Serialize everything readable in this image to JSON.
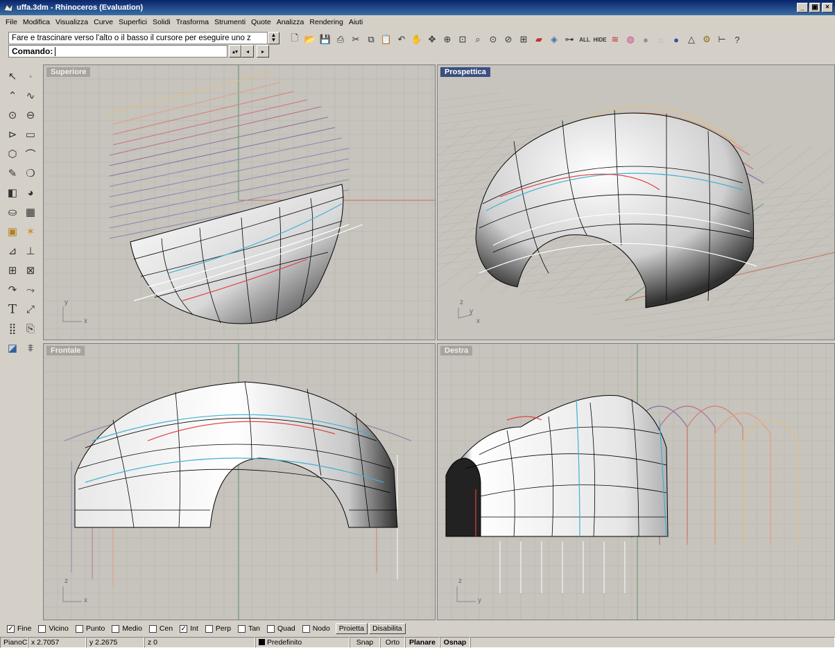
{
  "window": {
    "title": "uffa.3dm - Rhinoceros (Evaluation)",
    "controls": [
      "_",
      "▣",
      "×"
    ]
  },
  "menu": [
    "File",
    "Modifica",
    "Visualizza",
    "Curve",
    "Superfici",
    "Solidi",
    "Trasforma",
    "Strumenti",
    "Quote",
    "Analizza",
    "Rendering",
    "Aiuti"
  ],
  "command": {
    "history": "Fare e trascinare verso l'alto o il basso il cursore per eseguire uno z",
    "prompt_label": "Comando:",
    "value": ""
  },
  "toolbar_icons": [
    "new-icon",
    "open-icon",
    "save-icon",
    "print-icon",
    "cut-icon",
    "copy-icon",
    "paste-icon",
    "undo-icon",
    "pan-icon",
    "rotate-view-icon",
    "zoom-icon",
    "zoom-window-icon",
    "zoom-extents-icon",
    "zoom-selected-icon",
    "zoom-dynamic-icon",
    "viewport-layout-icon",
    "shaded-car-icon",
    "render-icon",
    "grid-snap-icon",
    "all-icon",
    "hide-icon",
    "layers-icon",
    "color-wheel-icon",
    "sphere-icon",
    "light-icon",
    "material-icon",
    "cone-icon",
    "gear-icon",
    "dimension-icon",
    "help-icon"
  ],
  "toolbar_text": {
    "all": "ALL",
    "hide": "HIDE"
  },
  "palette_icons": [
    "select-arrow-icon",
    "point-icon",
    "polyline-icon",
    "curve-icon",
    "circle-icon",
    "ellipse-icon",
    "arc-icon",
    "rectangle-icon",
    "polygon-icon",
    "fillet-icon",
    "freeform-icon",
    "blend-icon",
    "box-icon",
    "sphere-solid-icon",
    "cylinder-icon",
    "boolean-icon",
    "mesh-icon",
    "explode-icon",
    "trim-icon",
    "split-icon",
    "array-icon",
    "group-icon",
    "curve-tools-icon",
    "edit-points-icon",
    "text-icon",
    "dimension-tool-icon",
    "grid-icon",
    "transform-icon",
    "block-icon",
    "rendering-tool-icon"
  ],
  "palette_text": {
    "text_tool": "T"
  },
  "viewports": {
    "top": {
      "label": "Superiore",
      "axis_v": "y",
      "axis_h": "x"
    },
    "perspective": {
      "label": "Prospettica",
      "axis_v": "z",
      "axis_d": "y",
      "axis_h": "x"
    },
    "front": {
      "label": "Frontale",
      "axis_v": "z",
      "axis_h": "x"
    },
    "right": {
      "label": "Destra",
      "axis_v": "z",
      "axis_h": "y"
    }
  },
  "osnap": {
    "options": [
      {
        "label": "Fine",
        "checked": true
      },
      {
        "label": "Vicino",
        "checked": false
      },
      {
        "label": "Punto",
        "checked": false
      },
      {
        "label": "Medio",
        "checked": false
      },
      {
        "label": "Cen",
        "checked": false
      },
      {
        "label": "Int",
        "checked": true
      },
      {
        "label": "Perp",
        "checked": false
      },
      {
        "label": "Tan",
        "checked": false
      },
      {
        "label": "Quad",
        "checked": false
      },
      {
        "label": "Nodo",
        "checked": false
      }
    ],
    "buttons": [
      "Proietta",
      "Disabilita"
    ]
  },
  "status": {
    "plane": "PianoC",
    "x": "x 2.7057",
    "y": "y 2.2675",
    "z": "z 0",
    "layer": "Predefinito",
    "snap": "Snap",
    "ortho": "Orto",
    "planar": "Planare",
    "osnap": "Osnap"
  },
  "colors": {
    "viewport_bg": "#c7c3bd",
    "grid_line": "#b6b2ab",
    "axis_x": "#c0705a",
    "axis_y": "#5a9a6a",
    "active_label": "#3a5080"
  }
}
